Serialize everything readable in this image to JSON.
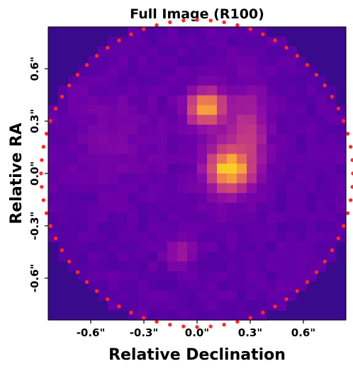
{
  "chart_data": {
    "type": "heatmap",
    "title": "Full Image (R100)",
    "xlabel": "Relative Declination",
    "ylabel": "Relative RA",
    "xlim": [
      -0.84,
      0.84
    ],
    "ylim": [
      -0.84,
      0.84
    ],
    "x_ticks": [
      {
        "value": -0.6,
        "label": "-0.6\""
      },
      {
        "value": -0.3,
        "label": "-0.3\""
      },
      {
        "value": 0.0,
        "label": "0.0\""
      },
      {
        "value": 0.3,
        "label": "0.3\""
      },
      {
        "value": 0.6,
        "label": "0.6\""
      }
    ],
    "y_ticks": [
      {
        "value": 0.6,
        "label": "0.6\""
      },
      {
        "value": 0.3,
        "label": "0.3\""
      },
      {
        "value": 0.0,
        "label": "0.0\""
      },
      {
        "value": -0.3,
        "label": "-0.3\""
      },
      {
        "value": -0.6,
        "label": "-0.6\""
      }
    ],
    "colormap": "plasma",
    "background_color": "#3a0a8c",
    "aperture": {
      "center": [
        0.0,
        0.0
      ],
      "radius": 0.88,
      "marker_color": "#ff2a2a"
    },
    "sources": [
      {
        "x": 0.05,
        "y": 0.38,
        "sx": 0.07,
        "sy": 0.065,
        "amp": 0.95
      },
      {
        "x": 0.18,
        "y": 0.02,
        "sx": 0.075,
        "sy": 0.075,
        "amp": 1.0
      },
      {
        "x": 0.3,
        "y": 0.22,
        "sx": 0.07,
        "sy": 0.18,
        "amp": 0.45
      },
      {
        "x": 0.12,
        "y": 0.12,
        "sx": 0.1,
        "sy": 0.25,
        "amp": 0.2
      },
      {
        "x": -0.1,
        "y": -0.45,
        "sx": 0.06,
        "sy": 0.06,
        "amp": 0.25
      },
      {
        "x": -0.45,
        "y": 0.2,
        "sx": 0.2,
        "sy": 0.2,
        "amp": 0.12
      }
    ]
  }
}
